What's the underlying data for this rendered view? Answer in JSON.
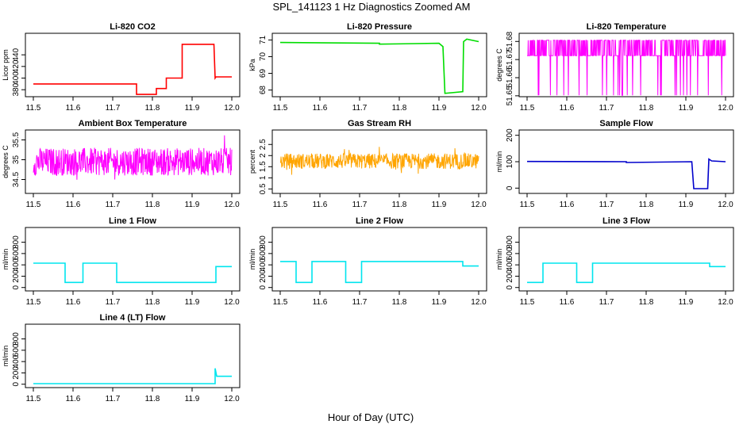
{
  "suptitle": "SPL_141123  1 Hz Diagnostics Zoomed AM",
  "xaxis_title": "Hour of Day (UTC)",
  "chart_data": [
    {
      "type": "line",
      "id": "co2",
      "title": "Li-820 CO2",
      "ylabel": "Licor ppm",
      "color": "#ff0000",
      "xlim": [
        11.48,
        12.02
      ],
      "ylim": [
        368,
        477
      ],
      "xticks": [
        "11.5",
        "11.6",
        "11.7",
        "11.8",
        "11.9",
        "12.0"
      ],
      "yticks": [
        {
          "v": 380,
          "label": "380"
        },
        {
          "v": 400,
          "label": "400"
        },
        {
          "v": 420,
          "label": "420"
        },
        {
          "v": 440,
          "label": "440"
        }
      ],
      "x": [
        11.5,
        11.76,
        11.76,
        11.81,
        11.81,
        11.835,
        11.835,
        11.875,
        11.875,
        11.955,
        11.958,
        11.96,
        12.0
      ],
      "y": [
        390,
        390,
        372,
        372,
        382,
        382,
        400,
        400,
        458,
        458,
        400,
        402,
        402
      ]
    },
    {
      "type": "line",
      "id": "pressure",
      "title": "Li-820 Pressure",
      "ylabel": "kPa",
      "color": "#00dd00",
      "xlim": [
        11.48,
        12.02
      ],
      "ylim": [
        67.6,
        71.4
      ],
      "xticks": [
        "11.5",
        "11.6",
        "11.7",
        "11.8",
        "11.9",
        "12.0"
      ],
      "yticks": [
        {
          "v": 68,
          "label": "68"
        },
        {
          "v": 69,
          "label": "69"
        },
        {
          "v": 70,
          "label": "70"
        },
        {
          "v": 71,
          "label": "71"
        }
      ],
      "x": [
        11.5,
        11.75,
        11.75,
        11.9,
        11.91,
        11.915,
        11.96,
        11.962,
        11.97,
        12.0
      ],
      "y": [
        70.85,
        70.8,
        70.75,
        70.8,
        70.6,
        67.8,
        67.9,
        70.9,
        71.05,
        70.9
      ]
    },
    {
      "type": "line",
      "id": "licor-temp",
      "title": "Li-820 Temperature",
      "ylabel": "degrees C",
      "color": "#ff00ff",
      "xlim": [
        11.48,
        12.02
      ],
      "ylim": [
        51.6495,
        51.6845
      ],
      "xticks": [
        "11.5",
        "11.6",
        "11.7",
        "11.8",
        "11.9",
        "12.0"
      ],
      "yticks": [
        {
          "v": 51.65,
          "label": "51.65"
        },
        {
          "v": 51.66,
          "label": "51.66"
        },
        {
          "v": 51.67,
          "label": "51.67"
        },
        {
          "v": 51.68,
          "label": "51.68"
        }
      ],
      "base": 51.674,
      "amplitude": 0.0095,
      "noise": "square"
    },
    {
      "type": "line",
      "id": "box-temp",
      "title": "Ambient Box Temperature",
      "ylabel": "degrees C",
      "color": "#ff00ff",
      "xlim": [
        11.48,
        12.02
      ],
      "ylim": [
        34.15,
        35.75
      ],
      "xticks": [
        "11.5",
        "11.6",
        "11.7",
        "11.8",
        "11.9",
        "12.0"
      ],
      "yticks": [
        {
          "v": 34.5,
          "label": "34.5"
        },
        {
          "v": 35.0,
          "label": "35"
        },
        {
          "v": 35.5,
          "label": "35.5"
        }
      ],
      "base": 34.95,
      "amplitude": 0.35,
      "noise": "random"
    },
    {
      "type": "line",
      "id": "rh",
      "title": "Gas Stream RH",
      "ylabel": "percent",
      "color": "#ffa500",
      "xlim": [
        11.48,
        12.02
      ],
      "ylim": [
        0.3,
        3.15
      ],
      "xticks": [
        "11.5",
        "11.6",
        "11.7",
        "11.8",
        "11.9",
        "12.0"
      ],
      "yticks": [
        {
          "v": 0.5,
          "label": "0.5"
        },
        {
          "v": 1.0,
          "label": "1"
        },
        {
          "v": 1.5,
          "label": "1.5"
        },
        {
          "v": 2.0,
          "label": "2"
        },
        {
          "v": 2.5,
          "label": "2.5"
        }
      ],
      "base": 1.75,
      "amplitude": 0.35,
      "noise": "random"
    },
    {
      "type": "line",
      "id": "sample-flow",
      "title": "Sample Flow",
      "ylabel": "ml/min",
      "color": "#0000cc",
      "xlim": [
        11.48,
        12.02
      ],
      "ylim": [
        -20,
        220
      ],
      "xticks": [
        "11.5",
        "11.6",
        "11.7",
        "11.8",
        "11.9",
        "12.0"
      ],
      "yticks": [
        {
          "v": 0,
          "label": "0"
        },
        {
          "v": 100,
          "label": "100"
        },
        {
          "v": 200,
          "label": "200"
        }
      ],
      "x": [
        11.5,
        11.75,
        11.75,
        11.915,
        11.92,
        11.955,
        11.958,
        11.965,
        12.0
      ],
      "y": [
        101,
        100,
        97,
        100,
        -2,
        -2,
        110,
        103,
        100
      ]
    },
    {
      "type": "line",
      "id": "line1-flow",
      "title": "Line 1 Flow",
      "ylabel": "ml/min",
      "color": "#00e5ee",
      "xlim": [
        11.48,
        12.02
      ],
      "ylim": [
        -60,
        1060
      ],
      "xticks": [
        "11.5",
        "11.6",
        "11.7",
        "11.8",
        "11.9",
        "12.0"
      ],
      "yticks": [
        {
          "v": 0,
          "label": "0"
        },
        {
          "v": 200,
          "label": "200"
        },
        {
          "v": 400,
          "label": "400"
        },
        {
          "v": 600,
          "label": "600"
        },
        {
          "v": 800,
          "label": "800"
        }
      ],
      "x": [
        11.5,
        11.58,
        11.58,
        11.625,
        11.625,
        11.71,
        11.71,
        11.96,
        11.96,
        12.0
      ],
      "y": [
        430,
        430,
        90,
        90,
        430,
        430,
        90,
        90,
        370,
        370
      ]
    },
    {
      "type": "line",
      "id": "line2-flow",
      "title": "Line 2 Flow",
      "ylabel": "ml/min",
      "color": "#00e5ee",
      "xlim": [
        11.48,
        12.02
      ],
      "ylim": [
        -60,
        1060
      ],
      "xticks": [
        "11.5",
        "11.6",
        "11.7",
        "11.8",
        "11.9",
        "12.0"
      ],
      "yticks": [
        {
          "v": 0,
          "label": "0"
        },
        {
          "v": 200,
          "label": "200"
        },
        {
          "v": 400,
          "label": "400"
        },
        {
          "v": 600,
          "label": "600"
        },
        {
          "v": 800,
          "label": "800"
        }
      ],
      "x": [
        11.5,
        11.54,
        11.54,
        11.58,
        11.58,
        11.665,
        11.665,
        11.705,
        11.705,
        11.96,
        11.96,
        12.0
      ],
      "y": [
        460,
        460,
        90,
        90,
        460,
        460,
        90,
        90,
        460,
        460,
        380,
        380
      ]
    },
    {
      "type": "line",
      "id": "line3-flow",
      "title": "Line 3 Flow",
      "ylabel": "ml/min",
      "color": "#00e5ee",
      "xlim": [
        11.48,
        12.02
      ],
      "ylim": [
        -60,
        1060
      ],
      "xticks": [
        "11.5",
        "11.6",
        "11.7",
        "11.8",
        "11.9",
        "12.0"
      ],
      "yticks": [
        {
          "v": 0,
          "label": "0"
        },
        {
          "v": 200,
          "label": "200"
        },
        {
          "v": 400,
          "label": "400"
        },
        {
          "v": 600,
          "label": "600"
        },
        {
          "v": 800,
          "label": "800"
        }
      ],
      "x": [
        11.5,
        11.54,
        11.54,
        11.625,
        11.625,
        11.665,
        11.665,
        11.96,
        11.96,
        12.0
      ],
      "y": [
        90,
        90,
        430,
        430,
        90,
        90,
        430,
        430,
        370,
        370
      ]
    },
    {
      "type": "line",
      "id": "line4-flow",
      "title": "Line 4 (LT) Flow",
      "ylabel": "ml/min",
      "color": "#00e5ee",
      "xlim": [
        11.48,
        12.02
      ],
      "ylim": [
        -60,
        1060
      ],
      "xticks": [
        "11.5",
        "11.6",
        "11.7",
        "11.8",
        "11.9",
        "12.0"
      ],
      "yticks": [
        {
          "v": 0,
          "label": "0"
        },
        {
          "v": 200,
          "label": "200"
        },
        {
          "v": 400,
          "label": "400"
        },
        {
          "v": 600,
          "label": "600"
        },
        {
          "v": 800,
          "label": "800"
        }
      ],
      "x": [
        11.5,
        11.958,
        11.958,
        11.962,
        11.965,
        12.0
      ],
      "y": [
        10,
        10,
        280,
        140,
        140,
        140
      ]
    }
  ]
}
